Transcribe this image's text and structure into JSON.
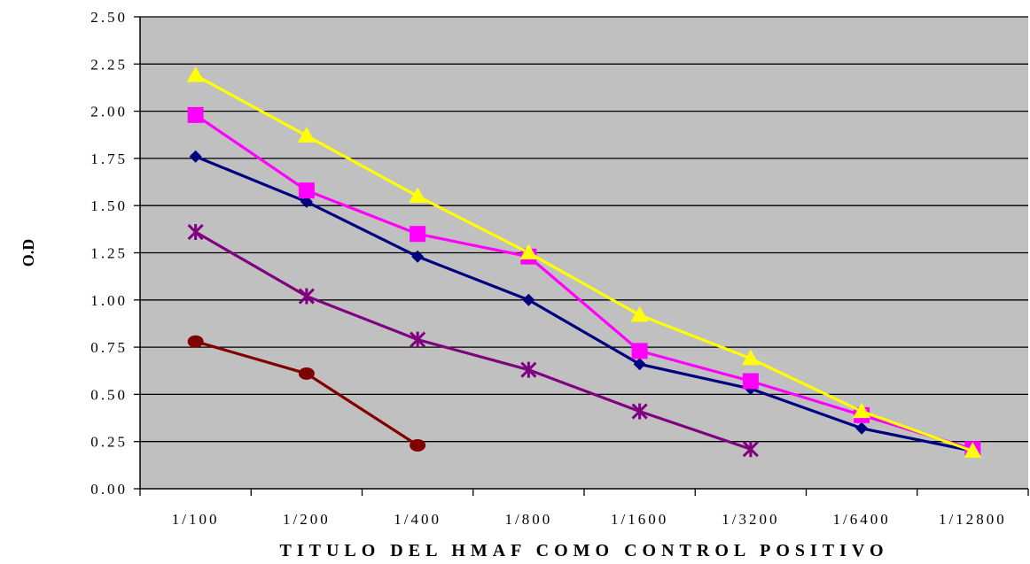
{
  "colors": {
    "plot_background": "#c0c0c0",
    "gridline": "#000000",
    "page_background": "#ffffff"
  },
  "chart_data": {
    "type": "line",
    "title": "",
    "xlabel": "TITULO DEL HMAF COMO CONTROL POSITIVO",
    "ylabel": "O.D",
    "categories": [
      "1/100",
      "1/200",
      "1/400",
      "1/800",
      "1/1600",
      "1/3200",
      "1/6400",
      "1/12800"
    ],
    "ylim": [
      0,
      2.5
    ],
    "yticks": [
      "0.00",
      "0.25",
      "0.50",
      "0.75",
      "1.00",
      "1.25",
      "1.50",
      "1.75",
      "2.00",
      "2.25",
      "2.50"
    ],
    "grid": true,
    "legend": "none",
    "series": [
      {
        "color": "#000080",
        "marker": "diamond",
        "values": [
          1.76,
          1.52,
          1.23,
          1.0,
          0.66,
          0.53,
          0.32,
          0.2
        ]
      },
      {
        "color": "#ff00ff",
        "marker": "square",
        "values": [
          1.98,
          1.58,
          1.35,
          1.23,
          0.73,
          0.57,
          0.39,
          0.21
        ]
      },
      {
        "color": "#ffff00",
        "marker": "triangle",
        "values": [
          2.19,
          1.87,
          1.55,
          1.25,
          0.92,
          0.69,
          0.41,
          0.2
        ]
      },
      {
        "color": "#800080",
        "marker": "asterisk",
        "values": [
          1.36,
          1.02,
          0.79,
          0.63,
          0.41,
          0.21,
          null,
          null
        ]
      },
      {
        "color": "#800000",
        "marker": "circle",
        "values": [
          0.78,
          0.61,
          0.23,
          null,
          null,
          null,
          null,
          null
        ]
      }
    ]
  }
}
